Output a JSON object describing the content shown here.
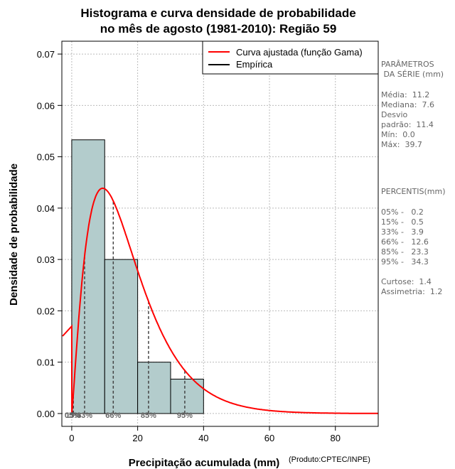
{
  "chart_data": {
    "type": "bar",
    "title": [
      "Histograma e curva densidade de probabilidade",
      "no mês de agosto (1981-2010): Região 59"
    ],
    "xlabel": "Precipitação acumulada (mm)",
    "ylabel": "Densidade de probabilidade",
    "credit": "(Produto:CPTEC/INPE)",
    "xlim": [
      -3,
      93
    ],
    "ylim": [
      -0.0025,
      0.0725
    ],
    "x_ticks": [
      0,
      20,
      40,
      60,
      80
    ],
    "y_ticks": [
      0.0,
      0.01,
      0.02,
      0.03,
      0.04,
      0.05,
      0.06,
      0.07
    ],
    "y_tick_labels": [
      "0.00",
      "0.01",
      "0.02",
      "0.03",
      "0.04",
      "0.05",
      "0.06",
      "0.07"
    ],
    "grid": true,
    "bins": [
      {
        "x0": 0,
        "x1": 10,
        "density": 0.0533
      },
      {
        "x0": 10,
        "x1": 20,
        "density": 0.03
      },
      {
        "x0": 20,
        "x1": 30,
        "density": 0.01
      },
      {
        "x0": 30,
        "x1": 40,
        "density": 0.0067
      }
    ],
    "bar_color": "#b3cccc",
    "curve": {
      "name": "Curva ajustada (função Gama)",
      "color": "#ff0000",
      "shape_k": 2.22,
      "scale_theta": 7.7
    },
    "empirical": {
      "name": "Empírica",
      "color": "#000000"
    },
    "legend_position": "top-right",
    "percentiles": [
      {
        "label": "05%",
        "value": 0.2
      },
      {
        "label": "15%",
        "value": 0.5
      },
      {
        "label": "33%",
        "value": 3.9
      },
      {
        "label": "66%",
        "value": 12.6
      },
      {
        "label": "85%",
        "value": 23.3
      },
      {
        "label": "95%",
        "value": 34.3
      }
    ]
  },
  "params": {
    "heading": "PARÂMETROS\n DA SÉRIE (mm)",
    "body": "Média:  11.2\nMediana:  7.6\nDesvio\npadrão:  11.4\nMín:  0.0\nMáx:  39.7"
  },
  "percentis": {
    "heading": "PERCENTIS(mm)",
    "body": "05% -   0.2\n15% -   0.5\n33% -   3.9\n66% -   12.6\n85% -   23.3\n95% -   34.3\n\nCurtose:  1.4\nAssimetria:  1.2"
  }
}
